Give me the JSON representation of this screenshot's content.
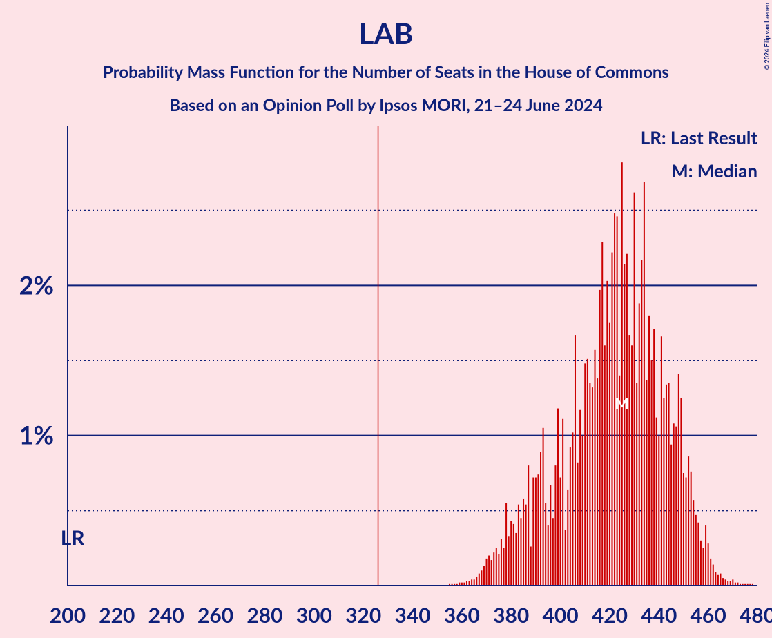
{
  "chart_data": {
    "type": "bar",
    "title": "LAB",
    "subtitle": "Probability Mass Function for the Number of Seats in the House of Commons",
    "subtitle2": "Based on an Opinion Poll by Ipsos MORI, 21–24 June 2024",
    "credit": "© 2024 Filip van Laenen",
    "legend": [
      "LR: Last Result",
      "M: Median"
    ],
    "color": "#cc0000",
    "xlim": [
      200,
      480
    ],
    "xticks": [
      200,
      220,
      240,
      260,
      280,
      300,
      320,
      340,
      360,
      380,
      400,
      420,
      440,
      460,
      480
    ],
    "ylim": [
      0,
      3.06
    ],
    "yticks": [
      {
        "value": 1,
        "label": "1%"
      },
      {
        "value": 2,
        "label": "2%"
      }
    ],
    "minor_yticks": [
      0.5,
      1.5,
      2.5
    ],
    "majority": 326,
    "last_result": {
      "value": 202,
      "label": "LR"
    },
    "median": {
      "value": 425,
      "label": "M"
    },
    "x": [
      355,
      356,
      357,
      358,
      359,
      360,
      361,
      362,
      363,
      364,
      365,
      366,
      367,
      368,
      369,
      370,
      371,
      372,
      373,
      374,
      375,
      376,
      377,
      378,
      379,
      380,
      381,
      382,
      383,
      384,
      385,
      386,
      387,
      388,
      389,
      390,
      391,
      392,
      393,
      394,
      395,
      396,
      397,
      398,
      399,
      400,
      401,
      402,
      403,
      404,
      405,
      406,
      407,
      408,
      409,
      410,
      411,
      412,
      413,
      414,
      415,
      416,
      417,
      418,
      419,
      420,
      421,
      422,
      423,
      424,
      425,
      426,
      427,
      428,
      429,
      430,
      431,
      432,
      433,
      434,
      435,
      436,
      437,
      438,
      439,
      440,
      441,
      442,
      443,
      444,
      445,
      446,
      447,
      448,
      449,
      450,
      451,
      452,
      453,
      454,
      455,
      456,
      457,
      458,
      459,
      460,
      461,
      462,
      463,
      464,
      465,
      466,
      467,
      468,
      469,
      470,
      471,
      472,
      473,
      474,
      475,
      476,
      477,
      478
    ],
    "values": [
      0.01,
      0.01,
      0.01,
      0.01,
      0.02,
      0.02,
      0.02,
      0.03,
      0.03,
      0.04,
      0.04,
      0.06,
      0.08,
      0.1,
      0.13,
      0.18,
      0.2,
      0.17,
      0.22,
      0.25,
      0.21,
      0.31,
      0.25,
      0.55,
      0.33,
      0.43,
      0.41,
      0.35,
      0.54,
      0.45,
      0.58,
      0.54,
      0.8,
      0.26,
      0.72,
      0.72,
      0.74,
      0.89,
      1.05,
      0.55,
      0.4,
      0.67,
      0.45,
      0.8,
      1.18,
      0.72,
      1.11,
      0.37,
      0.64,
      0.92,
      1.02,
      1.67,
      0.82,
      1.17,
      1.0,
      1.48,
      1.51,
      1.35,
      1.32,
      1.57,
      1.38,
      1.97,
      2.29,
      1.6,
      2.03,
      1.75,
      2.22,
      2.48,
      2.46,
      1.4,
      2.82,
      2.14,
      2.21,
      1.67,
      1.6,
      2.62,
      1.35,
      1.88,
      2.17,
      2.69,
      1.37,
      1.8,
      1.5,
      1.71,
      1.12,
      1.0,
      1.66,
      1.25,
      1.34,
      1.35,
      0.94,
      1.08,
      1.06,
      1.41,
      1.25,
      0.75,
      0.72,
      0.86,
      0.76,
      0.57,
      0.47,
      0.42,
      0.3,
      0.25,
      0.4,
      0.28,
      0.18,
      0.14,
      0.09,
      0.07,
      0.08,
      0.05,
      0.04,
      0.03,
      0.03,
      0.04,
      0.02,
      0.02,
      0.01,
      0.01,
      0.01,
      0.01,
      0.01,
      0.01
    ]
  }
}
